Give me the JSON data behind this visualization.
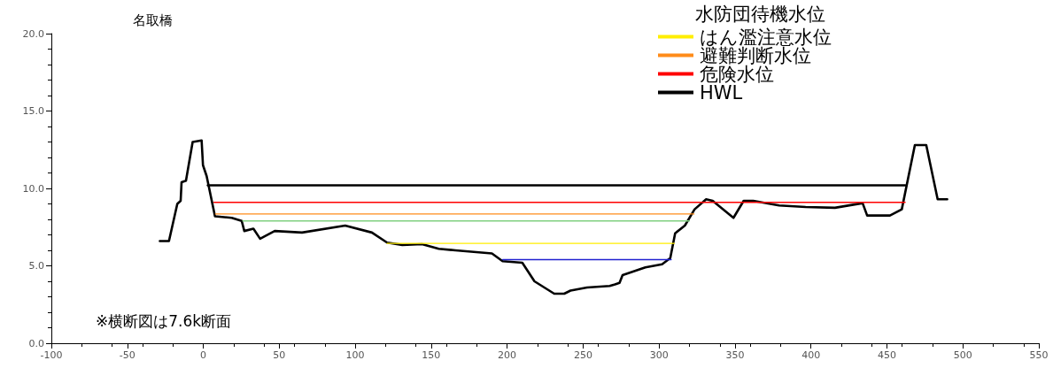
{
  "chart_data": {
    "type": "line",
    "title": "名取橋",
    "annotations": [
      "水防団待機水位",
      "※横断図は7.6k断面"
    ],
    "xlim": [
      -100,
      550
    ],
    "xticks": [
      -100,
      -50,
      0,
      50,
      100,
      150,
      200,
      250,
      300,
      350,
      400,
      450,
      500,
      550
    ],
    "ylim": [
      0,
      20
    ],
    "yticks": [
      {
        "value": 0,
        "label": "0.0"
      },
      {
        "value": 5,
        "label": "5.0"
      },
      {
        "value": 10,
        "label": "10.0"
      },
      {
        "value": 15,
        "label": "15.0"
      },
      {
        "value": 20,
        "label": "20.0"
      }
    ],
    "grid": false,
    "legend": "top right",
    "marker": "none",
    "line_style": "solid",
    "series": [
      {
        "color": "#000000",
        "x": [
          -28.6,
          -22.6,
          -17.1,
          -14.9,
          -14.3,
          -11.4,
          -7.0,
          -1.1,
          -0.2,
          2.2,
          7.7,
          18.7,
          25.3,
          27,
          33,
          37.4,
          47,
          65,
          93.4,
          111,
          121,
          131,
          144,
          155,
          166,
          190,
          197,
          210,
          218,
          231,
          237.6,
          241.7,
          252.6,
          267.5,
          271,
          274,
          276,
          291,
          302,
          307.4,
          310.6,
          317,
          323.4,
          331,
          335.3,
          349,
          355.7,
          362,
          379,
          396.5,
          415.8,
          434,
          437,
          452,
          459.8,
          468.4,
          475.9,
          483.4,
          489.7
        ],
        "values": [
          6.6,
          6.6,
          9.0,
          9.2,
          10.4,
          10.5,
          13.0,
          13.1,
          11.5,
          10.8,
          8.2,
          8.1,
          7.9,
          7.25,
          7.4,
          6.75,
          7.25,
          7.15,
          7.6,
          7.15,
          6.5,
          6.35,
          6.4,
          6.1,
          6.0,
          5.8,
          5.3,
          5.2,
          4.0,
          3.2,
          3.2,
          3.4,
          3.6,
          3.7,
          3.8,
          3.9,
          4.4,
          4.9,
          5.1,
          5.5,
          7.1,
          7.6,
          8.65,
          9.3,
          9.2,
          8.1,
          9.2,
          9.2,
          8.9,
          8.8,
          8.75,
          9.05,
          8.25,
          8.25,
          8.65,
          12.8,
          12.8,
          9.3,
          9.3
        ]
      },
      {
        "name": "はん濫注意水位",
        "color": "#ffee00",
        "x": [
          121,
          310
        ],
        "values": [
          6.45,
          6.45
        ]
      },
      {
        "name": "避難判断水位",
        "color": "#ff8c1a",
        "x": [
          8,
          323
        ],
        "values": [
          8.35,
          8.35
        ]
      },
      {
        "name": "危険水位",
        "color": "#ff0000",
        "x": [
          7,
          462
        ],
        "values": [
          9.1,
          9.1
        ]
      },
      {
        "name": "HWL",
        "color": "#000000",
        "x": [
          3,
          462
        ],
        "values": [
          10.2,
          10.2
        ]
      },
      {
        "color": "#80d080",
        "x": [
          26,
          320
        ],
        "values": [
          7.9,
          7.9
        ]
      },
      {
        "color": "#2020d0",
        "x": [
          197,
          308
        ],
        "values": [
          5.4,
          5.4
        ]
      }
    ]
  }
}
